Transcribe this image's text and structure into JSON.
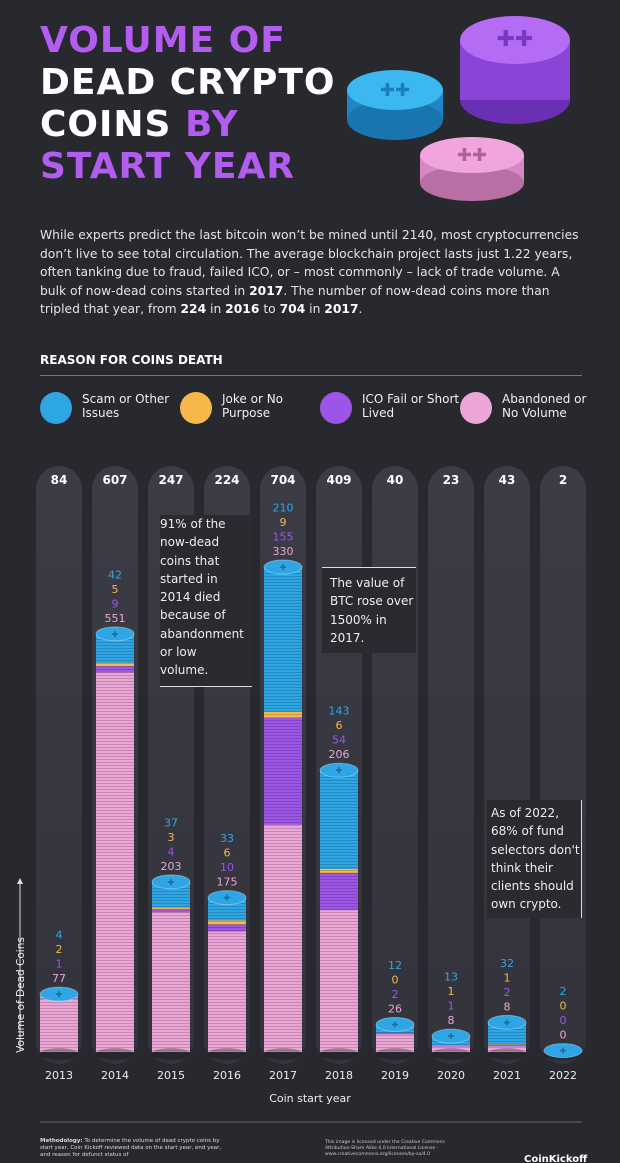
{
  "chart_data": {
    "type": "stacked_bar",
    "title": [
      "VOLUME OF",
      "DEAD CRYPTO",
      "COINS",
      "BY",
      "START YEAR"
    ],
    "description": [
      "While experts predict the last bitcoin won’t be mined until 2140, most cryptocurrencies don’t live to see total circulation. The average blockchain project lasts just 1.22 years, often tanking due to fraud, failed ICO, or – most commonly – lack of trade volume. A bulk of now-dead coins started in ",
      "2017",
      ". The number of now-dead coins more than tripled that year, from ",
      "224",
      " in ",
      "2016",
      " to ",
      "704",
      " in ",
      "2017",
      "."
    ],
    "legend_title": "REASON FOR COINS DEATH",
    "categories": [
      "2013",
      "2014",
      "2015",
      "2016",
      "2017",
      "2018",
      "2019",
      "2020",
      "2021",
      "2022"
    ],
    "totals": [
      84,
      607,
      247,
      224,
      704,
      409,
      40,
      23,
      43,
      2
    ],
    "series": [
      {
        "name": "Scam or Other Issues",
        "color": "#2ea6e6",
        "values": [
          4,
          42,
          37,
          33,
          210,
          143,
          12,
          13,
          32,
          2
        ]
      },
      {
        "name": "Joke or No Purpose",
        "color": "#f6b84a",
        "values": [
          2,
          5,
          3,
          6,
          9,
          6,
          0,
          1,
          1,
          0
        ]
      },
      {
        "name": "ICO Fail or Short Lived",
        "color": "#9d55e8",
        "values": [
          1,
          9,
          4,
          10,
          155,
          54,
          2,
          1,
          2,
          0
        ]
      },
      {
        "name": "Abandoned or No Volume",
        "color": "#eba6d6",
        "values": [
          77,
          551,
          203,
          175,
          330,
          206,
          26,
          8,
          8,
          0
        ]
      }
    ],
    "xlabel": "Coin start year",
    "ylabel": "Volume of Dead Coins",
    "annotations": [
      "91% of the now-dead coins that started in 2014 died because of abandonment or low volume.",
      "The value of BTC rose over 1500% in 2017.",
      "As of 2022, 68% of fund selectors don't think their clients should own crypto."
    ],
    "methodology": [
      "Methodology:",
      " To determine the volume of dead crypto coins by start year, Coin Kickoff reviewed data on the start year, end year, and reason for defunct status of"
    ],
    "license": "This image is licensed under the Creative Commons Attribution-Share Alike 4.0 International License - www.creativecommons.org/licenses/by-sa/4.0",
    "brand": "CoinKickoff"
  }
}
